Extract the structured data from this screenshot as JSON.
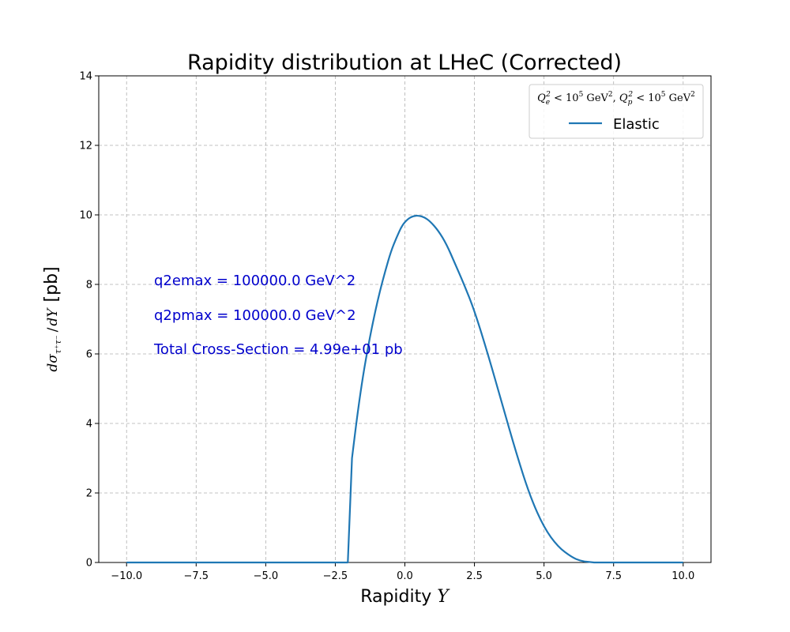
{
  "chart_data": {
    "type": "line",
    "title": "Rapidity distribution at LHeC (Corrected)",
    "xlabel": "Rapidity Y",
    "ylabel": "dσ/dY [pb]",
    "xlim": [
      -11,
      11
    ],
    "ylim": [
      0,
      14
    ],
    "xticks": [
      -10.0,
      -7.5,
      -5.0,
      -2.5,
      0.0,
      2.5,
      5.0,
      7.5,
      10.0
    ],
    "xtick_labels": [
      "−10.0",
      "−7.5",
      "−5.0",
      "−2.5",
      "0.0",
      "2.5",
      "5.0",
      "7.5",
      "10.0"
    ],
    "yticks": [
      0,
      2,
      4,
      6,
      8,
      10,
      12,
      14
    ],
    "ytick_labels": [
      "0",
      "2",
      "4",
      "6",
      "8",
      "10",
      "12",
      "14"
    ],
    "grid": true,
    "legend_placement": "top-right",
    "legend_title": "Q_e^2 < 10^5 GeV^2, Q_p^2 < 10^5 GeV^2",
    "series": [
      {
        "name": "Elastic",
        "color": "#1f77b4",
        "x": [
          -10.0,
          -8.0,
          -6.0,
          -4.0,
          -2.2,
          -2.05,
          -1.9,
          -1.7,
          -1.5,
          -1.3,
          -1.1,
          -0.9,
          -0.7,
          -0.5,
          -0.3,
          -0.1,
          0.1,
          0.3,
          0.5,
          0.7,
          0.9,
          1.2,
          1.5,
          1.8,
          2.1,
          2.5,
          3.0,
          3.5,
          4.0,
          4.5,
          5.0,
          5.5,
          6.0,
          6.3,
          6.6,
          6.8,
          7.0,
          8.0,
          9.0,
          10.0
        ],
        "values": [
          0,
          0,
          0,
          0,
          0,
          0,
          3.0,
          4.3,
          5.4,
          6.3,
          7.1,
          7.8,
          8.4,
          8.95,
          9.35,
          9.7,
          9.88,
          9.97,
          9.98,
          9.93,
          9.82,
          9.55,
          9.15,
          8.6,
          8.05,
          7.25,
          5.95,
          4.55,
          3.15,
          1.9,
          1.0,
          0.45,
          0.15,
          0.05,
          0.01,
          0,
          0,
          0,
          0,
          0
        ]
      }
    ],
    "annotations": {
      "q2emax": "q2emax = 100000.0 GeV^2",
      "q2pmax": "q2pmax = 100000.0 GeV^2",
      "total": "Total Cross-Section = 4.99e+01 pb",
      "color": "#0000cc"
    }
  }
}
